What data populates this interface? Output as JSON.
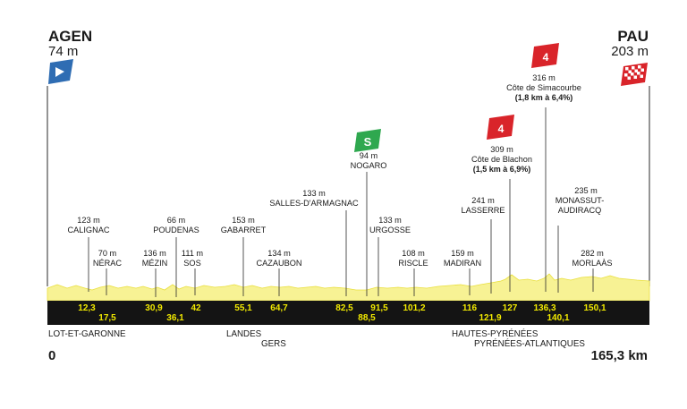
{
  "start": {
    "name": "AGEN",
    "altitude": "74 m"
  },
  "finish": {
    "name": "PAU",
    "altitude": "203 m"
  },
  "distance": {
    "start": "0",
    "end": "165,3 km"
  },
  "colors": {
    "profile": "#f7f294",
    "band": "#141414",
    "km_text": "#f2ea00",
    "start_flag": "#2f6db3",
    "sprint": "#2fa84f",
    "climb": "#d9242a"
  },
  "waypoints": [
    {
      "km": "12,3",
      "altitude": "123 m",
      "name": "CALIGNAC"
    },
    {
      "km": "17,5",
      "altitude": "70 m",
      "name": "NÉRAC"
    },
    {
      "km": "30,9",
      "altitude": "136 m",
      "name": "MÉZIN"
    },
    {
      "km": "36,1",
      "altitude": "66 m",
      "name": "POUDENAS"
    },
    {
      "km": "42",
      "altitude": "111 m",
      "name": "SOS"
    },
    {
      "km": "55,1",
      "altitude": "153 m",
      "name": "GABARRET"
    },
    {
      "km": "64,7",
      "altitude": "134 m",
      "name": "CAZAUBON"
    },
    {
      "km": "82,5",
      "altitude": "133 m",
      "name": "SALLES-D'ARMAGNAC"
    },
    {
      "km": "88,5",
      "altitude": "94 m",
      "name": "NOGARO"
    },
    {
      "km": "91,5",
      "altitude": "133 m",
      "name": "URGOSSE"
    },
    {
      "km": "101,2",
      "altitude": "108 m",
      "name": "RISCLE"
    },
    {
      "km": "116",
      "altitude": "159 m",
      "name": "MADIRAN"
    },
    {
      "km": "121,9",
      "altitude": "241 m",
      "name": "LASSERRE"
    },
    {
      "km": "127",
      "altitude": "309 m",
      "name": "Côte de Blachon"
    },
    {
      "km": "136,3",
      "altitude": "316 m",
      "name": "Côte de Simacourbe"
    },
    {
      "km": "140,1",
      "altitude": "235 m",
      "name": "MONASSUT-AUDIRACQ"
    },
    {
      "km": "150,1",
      "altitude": "282 m",
      "name": "MORLAÀS"
    }
  ],
  "climbs": [
    {
      "category": "4",
      "name": "Côte de Blachon",
      "altitude": "309 m",
      "detail": "(1,5 km à 6,9%)"
    },
    {
      "category": "4",
      "name": "Côte de Simacourbe",
      "altitude": "316 m",
      "detail": "(1,8 km à 6,4%)"
    }
  ],
  "sprint": {
    "icon": "sprint-S-flag",
    "label": "S"
  },
  "regions": [
    "LOT-ET-GARONNE",
    "LANDES",
    "GERS",
    "HAUTES-PYRÉNÉES",
    "PYRÉNÉES-ATLANTIQUES"
  ]
}
